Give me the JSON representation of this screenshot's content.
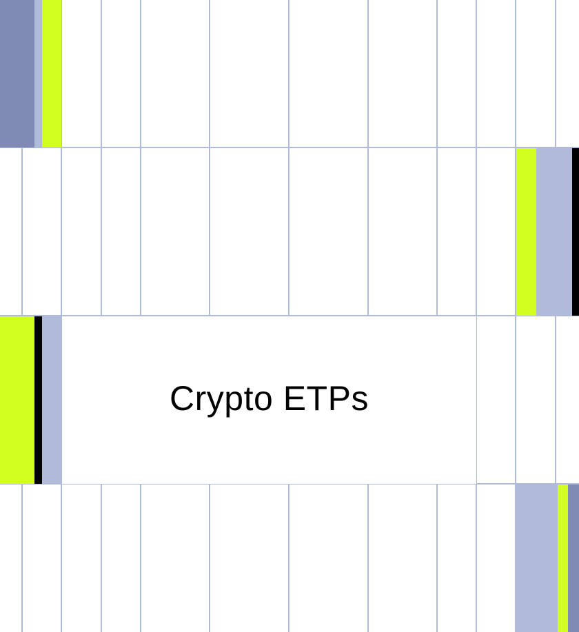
{
  "title": "Crypto ETPs",
  "colors": {
    "grid_line": "#b0bad9",
    "lime": "#d2ff1f",
    "periwinkle": "#b0bad9",
    "slate": "#7f8ab5",
    "black": "#000000",
    "background": "#ffffff"
  }
}
